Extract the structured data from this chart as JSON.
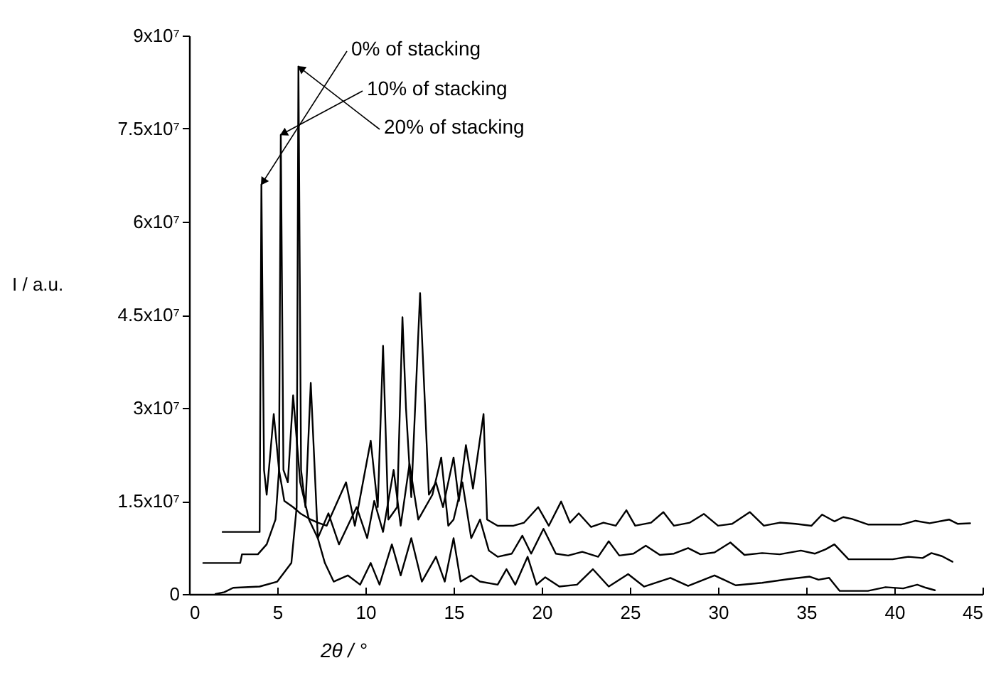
{
  "chart_data": {
    "type": "line",
    "xlabel": "2θ / °",
    "ylabel": "I / a.u.",
    "xlim": [
      0,
      45
    ],
    "xticks": [
      0,
      5,
      10,
      15,
      20,
      25,
      30,
      35,
      40,
      45
    ],
    "ylim": [
      0,
      90000000
    ],
    "yticks": [
      {
        "value": 0,
        "label": "0"
      },
      {
        "value": 15000000,
        "label": "1.5x10⁷"
      },
      {
        "value": 30000000,
        "label": "3x10⁷"
      },
      {
        "value": 45000000,
        "label": "4.5x10⁷"
      },
      {
        "value": 60000000,
        "label": "6x10⁷"
      },
      {
        "value": 75000000,
        "label": "7.5x10⁷"
      },
      {
        "value": 90000000,
        "label": "9x10⁷"
      }
    ],
    "grid": false,
    "legend": false,
    "marker": "none",
    "line_style": "solid",
    "series": [
      {
        "name": "0% of stacking",
        "color": "#000000",
        "x": [
          1.9,
          4.0,
          4.1,
          4.25,
          4.4,
          4.8,
          5.1,
          5.4,
          5.9,
          6.3,
          6.9,
          7.3,
          7.8,
          8.9,
          9.4,
          10.3,
          10.7,
          11.0,
          11.3,
          11.8,
          12.1,
          12.3,
          12.6,
          13.1,
          13.6,
          14.0,
          14.4,
          15.0,
          15.3,
          15.7,
          16.1,
          16.7,
          16.9,
          17.5,
          18.4,
          19.0,
          19.8,
          20.4,
          21.1,
          21.6,
          22.1,
          22.8,
          23.5,
          24.2,
          24.8,
          25.3,
          26.2,
          26.9,
          27.5,
          28.4,
          29.2,
          30.0,
          30.8,
          31.8,
          32.6,
          33.5,
          34.4,
          35.3,
          35.9,
          36.6,
          37.1,
          37.6,
          38.5,
          40.4,
          41.2,
          42.0,
          43.1,
          43.6,
          44.3
        ],
        "values": [
          10000000,
          10000000,
          66000000,
          20000000,
          16000000,
          29000000,
          20000000,
          15000000,
          14000000,
          13000000,
          12000000,
          11500000,
          11000000,
          18000000,
          11000000,
          24700000,
          14000000,
          40000000,
          12000000,
          14000000,
          44600000,
          30000000,
          15600000,
          48500000,
          16000000,
          18000000,
          14000000,
          22000000,
          15000000,
          24000000,
          17000000,
          29000000,
          12000000,
          11000000,
          11000000,
          11500000,
          14000000,
          11000000,
          14900000,
          11500000,
          13000000,
          10800000,
          11500000,
          11000000,
          13500000,
          11000000,
          11500000,
          13200000,
          11000000,
          11500000,
          12900000,
          11000000,
          11300000,
          13200000,
          11000000,
          11500000,
          11300000,
          11000000,
          12800000,
          11700000,
          12400000,
          12100000,
          11200000,
          11200000,
          11800000,
          11400000,
          12000000,
          11300000,
          11400000
        ]
      },
      {
        "name": "10% of stacking",
        "color": "#000000",
        "x": [
          0.8,
          2.9,
          3.0,
          3.9,
          4.4,
          4.9,
          5.1,
          5.2,
          5.35,
          5.6,
          5.9,
          6.3,
          6.8,
          7.3,
          7.9,
          8.5,
          9.5,
          10.1,
          10.5,
          11.0,
          11.6,
          12.0,
          12.5,
          13.0,
          13.8,
          14.3,
          14.7,
          15.0,
          15.5,
          16.0,
          16.5,
          17.0,
          17.5,
          18.3,
          18.9,
          19.4,
          20.1,
          20.8,
          21.5,
          22.3,
          23.2,
          23.8,
          24.4,
          25.2,
          25.9,
          26.7,
          27.5,
          28.3,
          29.0,
          29.8,
          30.7,
          31.5,
          32.5,
          33.5,
          34.7,
          35.5,
          36.1,
          36.6,
          37.0,
          37.4,
          39.9,
          40.8,
          41.6,
          42.1,
          42.7,
          43.3
        ],
        "values": [
          5000000,
          5000000,
          6400000,
          6400000,
          8000000,
          12000000,
          20000000,
          74000000,
          20000000,
          18000000,
          32000000,
          18000000,
          12000000,
          9000000,
          13000000,
          8000000,
          14000000,
          9000000,
          15000000,
          10000000,
          20000000,
          11000000,
          21000000,
          12000000,
          16000000,
          22000000,
          11000000,
          12000000,
          18000000,
          9000000,
          12000000,
          7000000,
          6000000,
          6500000,
          9400000,
          6500000,
          10500000,
          6500000,
          6200000,
          6800000,
          6000000,
          8500000,
          6200000,
          6500000,
          7800000,
          6300000,
          6500000,
          7400000,
          6400000,
          6700000,
          8300000,
          6300000,
          6600000,
          6400000,
          7000000,
          6500000,
          7200000,
          8000000,
          6800000,
          5600000,
          5600000,
          6000000,
          5800000,
          6600000,
          6100000,
          5200000
        ]
      },
      {
        "name": "20% of stacking",
        "color": "#000000",
        "x": [
          1.5,
          2.0,
          2.5,
          4.0,
          5.0,
          5.8,
          6.1,
          6.2,
          6.35,
          6.6,
          6.9,
          7.3,
          7.7,
          8.2,
          9.0,
          9.7,
          10.3,
          10.8,
          11.5,
          12.0,
          12.6,
          13.2,
          14.0,
          14.5,
          15.0,
          15.4,
          16.0,
          16.5,
          17.5,
          18.0,
          18.5,
          19.2,
          19.7,
          20.2,
          21.0,
          22.0,
          22.9,
          23.8,
          24.9,
          25.8,
          27.3,
          28.3,
          29.8,
          31.0,
          32.5,
          34.0,
          35.2,
          35.7,
          36.3,
          36.9,
          38.5,
          39.5,
          40.5,
          41.3,
          41.8,
          42.3
        ],
        "values": [
          0,
          300000,
          1000000,
          1200000,
          2000000,
          5000000,
          14000000,
          85000000,
          20000000,
          14000000,
          34000000,
          9000000,
          5000000,
          2000000,
          3000000,
          1500000,
          5000000,
          1500000,
          8000000,
          3000000,
          9000000,
          2000000,
          6000000,
          2000000,
          9000000,
          2000000,
          3000000,
          2000000,
          1500000,
          4000000,
          1500000,
          6000000,
          1500000,
          2700000,
          1200000,
          1500000,
          4000000,
          1200000,
          3200000,
          1200000,
          2600000,
          1300000,
          3000000,
          1400000,
          1800000,
          2400000,
          2800000,
          2300000,
          2600000,
          500000,
          500000,
          1100000,
          900000,
          1500000,
          1000000,
          600000
        ]
      }
    ]
  }
}
